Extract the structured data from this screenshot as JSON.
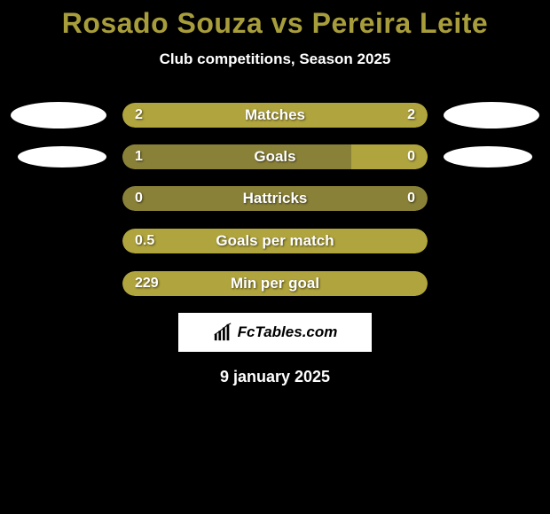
{
  "title": "Rosado Souza vs Pereira Leite",
  "subtitle": "Club competitions, Season 2025",
  "bars": [
    {
      "metric": "Matches",
      "left_val": "2",
      "right_val": "2",
      "left_pct": 50,
      "right_pct": 50,
      "show_left_oval": true,
      "show_right_oval": true,
      "left_oval_small": false,
      "right_oval_small": false,
      "mode": "full"
    },
    {
      "metric": "Goals",
      "left_val": "1",
      "right_val": "0",
      "left_pct": 75,
      "right_pct": 25,
      "show_left_oval": true,
      "show_right_oval": true,
      "left_oval_small": true,
      "right_oval_small": true,
      "mode": "split"
    },
    {
      "metric": "Hattricks",
      "left_val": "0",
      "right_val": "0",
      "left_pct": 0,
      "right_pct": 0,
      "show_left_oval": false,
      "show_right_oval": false,
      "left_oval_small": false,
      "right_oval_small": false,
      "mode": "empty"
    },
    {
      "metric": "Goals per match",
      "left_val": "0.5",
      "right_val": "",
      "left_pct": 100,
      "right_pct": 0,
      "show_left_oval": false,
      "show_right_oval": false,
      "left_oval_small": false,
      "right_oval_small": false,
      "mode": "left_only"
    },
    {
      "metric": "Min per goal",
      "left_val": "229",
      "right_val": "",
      "left_pct": 100,
      "right_pct": 0,
      "show_left_oval": false,
      "show_right_oval": false,
      "left_oval_small": false,
      "right_oval_small": false,
      "mode": "left_only"
    }
  ],
  "colors": {
    "background": "#000000",
    "title": "#a89d3b",
    "bar_dark": "#8a8138",
    "bar_light": "#b0a43e",
    "text": "#ffffff",
    "oval": "#ffffff"
  },
  "logo_text": "FcTables.com",
  "date": "9 january 2025"
}
